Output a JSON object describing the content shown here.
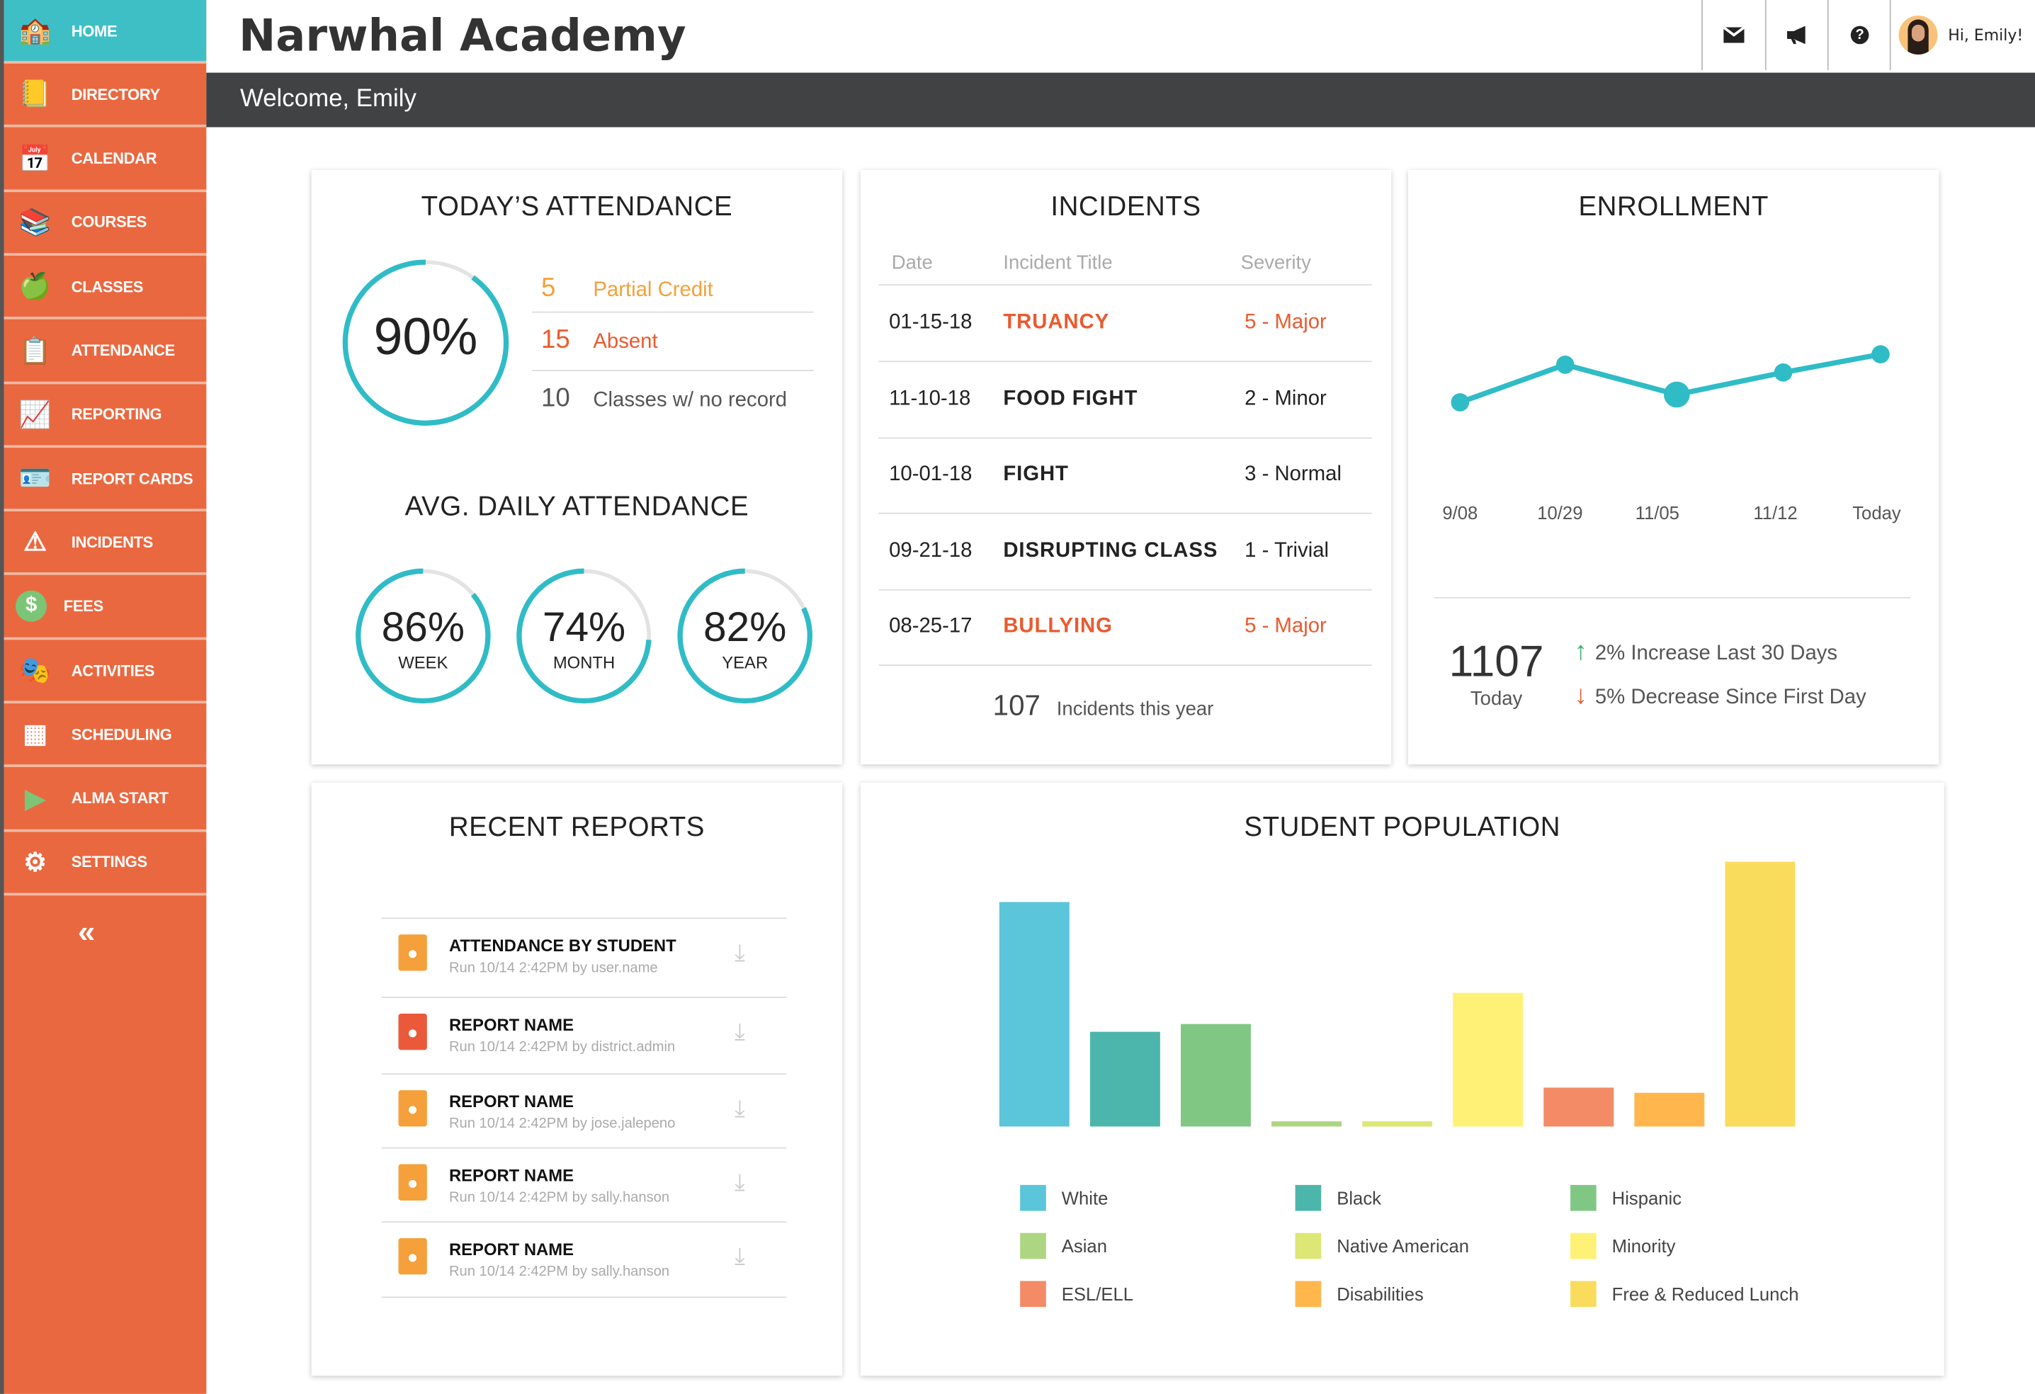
{
  "app": {
    "title": "Narwhal Academy",
    "welcome": "Welcome, Emily",
    "greeting": "Hi, Emily!"
  },
  "colors": {
    "sidebar": "#ea6840",
    "active": "#3ebfc6",
    "header_bar": "#414244",
    "accent_orange": "#f5a03a",
    "accent_red": "#ea5a2e"
  },
  "sidebar": {
    "items": [
      {
        "label": "HOME",
        "icon": "schoolhouse-icon",
        "active": true
      },
      {
        "label": "DIRECTORY",
        "icon": "address-book-icon"
      },
      {
        "label": "CALENDAR",
        "icon": "calendar-icon"
      },
      {
        "label": "COURSES",
        "icon": "books-icon"
      },
      {
        "label": "CLASSES",
        "icon": "apple-icon"
      },
      {
        "label": "ATTENDANCE",
        "icon": "checklist-icon"
      },
      {
        "label": "REPORTING",
        "icon": "report-chart-icon"
      },
      {
        "label": "REPORT CARDS",
        "icon": "report-card-icon"
      },
      {
        "label": "INCIDENTS",
        "icon": "warning-icon"
      },
      {
        "label": "FEES",
        "icon": "dollar-icon"
      },
      {
        "label": "ACTIVITIES",
        "icon": "masks-icon"
      },
      {
        "label": "SCHEDULING",
        "icon": "grid-icon"
      },
      {
        "label": "ALMA START",
        "icon": "play-icon"
      },
      {
        "label": "SETTINGS",
        "icon": "gear-house-icon"
      }
    ],
    "collapse": "«"
  },
  "toolbar": {
    "icons": [
      "mail-icon",
      "megaphone-icon",
      "help-icon"
    ]
  },
  "attendance": {
    "title": "TODAY’S ATTENDANCE",
    "today_pct": 90,
    "today_label": "90%",
    "stats": [
      {
        "count": "5",
        "label": "Partial Credit",
        "color": "#f5a03a"
      },
      {
        "count": "15",
        "label": "Absent",
        "color": "#ea5a2e"
      },
      {
        "count": "10",
        "label": "Classes w/ no record",
        "color": "#555"
      }
    ],
    "avg_title": "AVG. DAILY ATTENDANCE",
    "avg": [
      {
        "pct": 86,
        "value": "86%",
        "label": "WEEK"
      },
      {
        "pct": 74,
        "value": "74%",
        "label": "MONTH"
      },
      {
        "pct": 82,
        "value": "82%",
        "label": "YEAR"
      }
    ]
  },
  "incidents": {
    "title": "INCIDENTS",
    "headers": [
      "Date",
      "Incident Title",
      "Severity"
    ],
    "rows": [
      {
        "date": "01-15-18",
        "title": "TRUANCY",
        "severity": "5 - Major",
        "highlight": true
      },
      {
        "date": "11-10-18",
        "title": "FOOD FIGHT",
        "severity": "2 - Minor",
        "highlight": false
      },
      {
        "date": "10-01-18",
        "title": "FIGHT",
        "severity": "3 - Normal",
        "highlight": false
      },
      {
        "date": "09-21-18",
        "title": "DISRUPTING CLASS",
        "severity": "1 - Trivial",
        "highlight": false
      },
      {
        "date": "08-25-17",
        "title": "BULLYING",
        "severity": "5 - Major",
        "highlight": true
      }
    ],
    "total": "107",
    "total_label": "Incidents this year"
  },
  "enrollment": {
    "title": "ENROLLMENT",
    "x_labels": [
      "9/08",
      "10/29",
      "11/05",
      "11/12",
      "Today"
    ],
    "line_values": [
      0,
      29,
      6,
      23,
      37
    ],
    "highlight_index": 2,
    "count": "1107",
    "count_label": "Today",
    "changes": [
      {
        "arrow": "↑",
        "text": "2% Increase Last 30 Days",
        "color": "#3cb371"
      },
      {
        "arrow": "↓",
        "text": "5% Decrease Since First Day",
        "color": "#ea5a2e"
      }
    ]
  },
  "reports": {
    "title": "RECENT REPORTS",
    "items": [
      {
        "name": "ATTENDANCE BY STUDENT",
        "meta": "Run 10/14  2:42PM by user.name",
        "icon": "student-file-icon",
        "color": "#f5a03a"
      },
      {
        "name": "REPORT NAME",
        "meta": "Run 10/14  2:42PM by district.admin",
        "icon": "group-file-icon",
        "color": "#ea5a3a"
      },
      {
        "name": "REPORT NAME",
        "meta": "Run 10/14  2:42PM by jose.jalepeno",
        "icon": "student-file-icon",
        "color": "#f5a03a"
      },
      {
        "name": "REPORT NAME",
        "meta": "Run 10/14  2:42PM by sally.hanson",
        "icon": "student-file-icon",
        "color": "#f5a03a"
      },
      {
        "name": "REPORT NAME",
        "meta": "Run 10/14  2:42PM by sally.hanson",
        "icon": "student-file-icon",
        "color": "#f5a03a"
      }
    ]
  },
  "chart_data": {
    "type": "bar",
    "title": "STUDENT POPULATION",
    "categories": [
      "White",
      "Black",
      "Hispanic",
      "Asian",
      "Native American",
      "Minority",
      "ESL/ELL",
      "Disabilities",
      "Free & Reduced Lunch"
    ],
    "values": [
      173,
      73,
      79,
      4,
      4,
      103,
      30,
      26,
      204
    ],
    "colors": [
      "#5bc5d9",
      "#4db6ac",
      "#81c784",
      "#aed581",
      "#dce775",
      "#fff176",
      "#f28b66",
      "#ffb74d",
      "#f9dc5c"
    ],
    "legend_position": "bottom",
    "grid": false
  }
}
